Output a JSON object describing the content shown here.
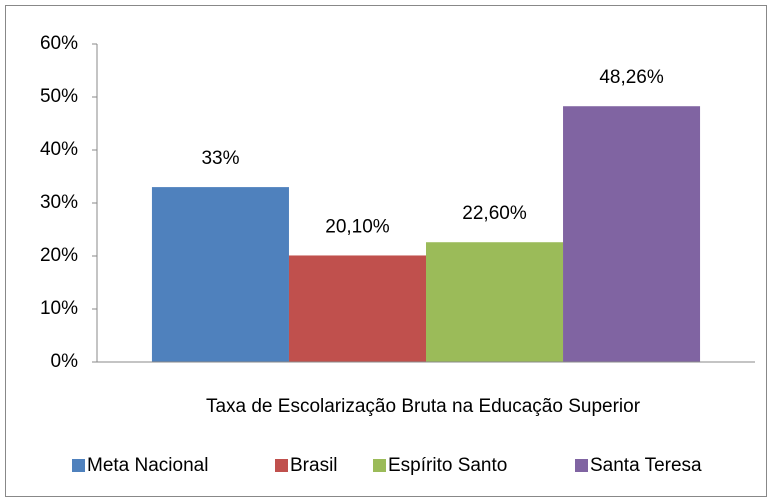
{
  "chart_data": {
    "type": "bar",
    "categories": [
      "Taxa de Escolarização Bruta na Educação Superior"
    ],
    "series": [
      {
        "name": "Meta Nacional",
        "color": "#4f81bd",
        "values": [
          33
        ],
        "value_labels": [
          "33%"
        ]
      },
      {
        "name": "Brasil",
        "color": "#c0504d",
        "values": [
          20.1
        ],
        "value_labels": [
          "20,10%"
        ]
      },
      {
        "name": "Espírito Santo",
        "color": "#9bbb59",
        "values": [
          22.6
        ],
        "value_labels": [
          "22,60%"
        ]
      },
      {
        "name": "Santa Teresa",
        "color": "#8064a2",
        "values": [
          48.26
        ],
        "value_labels": [
          "48,26%"
        ]
      }
    ],
    "ylim": [
      0,
      60
    ],
    "yticks": [
      {
        "value": 0,
        "label": "0%"
      },
      {
        "value": 10,
        "label": "10%"
      },
      {
        "value": 20,
        "label": "20%"
      },
      {
        "value": 30,
        "label": "30%"
      },
      {
        "value": 40,
        "label": "40%"
      },
      {
        "value": 50,
        "label": "50%"
      },
      {
        "value": 60,
        "label": "60%"
      }
    ],
    "grid": false,
    "legend": "bottom"
  }
}
